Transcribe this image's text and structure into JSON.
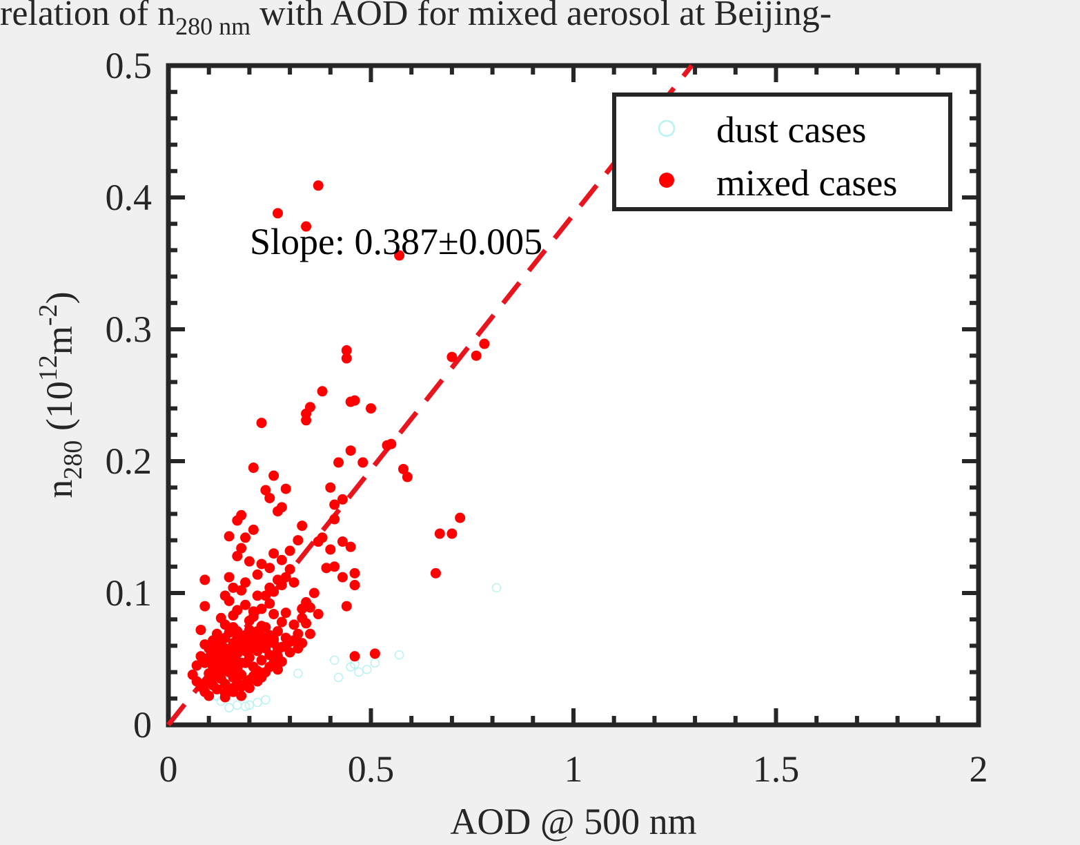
{
  "chart_data": {
    "type": "scatter",
    "title": {
      "before": "relation of n",
      "sub": "280 nm",
      "after": " with AOD for mixed aerosol at Beijing-"
    },
    "xlabel": "AOD @ 500 nm",
    "ylabel": {
      "main": "n",
      "sub": "280",
      "unit_open": " (10",
      "unit_sup1": "12",
      "unit_mid": "m",
      "unit_sup2": "-2",
      "unit_close": ")"
    },
    "xlim": [
      0,
      2
    ],
    "ylim": [
      0,
      0.5
    ],
    "x_ticks": [
      0,
      0.5,
      1,
      1.5,
      2
    ],
    "y_ticks": [
      0,
      0.1,
      0.2,
      0.3,
      0.4,
      0.5
    ],
    "x_tick_labels": [
      "0",
      "0.5",
      "1",
      "1.5",
      "2"
    ],
    "y_tick_labels": [
      "0",
      "0.1",
      "0.2",
      "0.3",
      "0.4",
      "0.5"
    ],
    "grid": false,
    "legend": {
      "position": "top-right",
      "entries": [
        {
          "label": "dust cases",
          "marker": "open-circle",
          "color": "#b8f2f2"
        },
        {
          "label": "mixed cases",
          "marker": "filled-circle",
          "color": "#ff0000"
        }
      ]
    },
    "annotation": "Slope: 0.387±0.005",
    "fit_line": {
      "slope": 0.387,
      "intercept": 0,
      "style": "dashed",
      "color": "#e8141e"
    },
    "series": [
      {
        "name": "dust cases",
        "marker": "open-circle",
        "color": "#b8f2f2",
        "points": [
          [
            0.81,
            0.104
          ],
          [
            0.57,
            0.053
          ],
          [
            0.41,
            0.049
          ],
          [
            0.46,
            0.046
          ],
          [
            0.51,
            0.047
          ],
          [
            0.49,
            0.042
          ],
          [
            0.47,
            0.04
          ],
          [
            0.42,
            0.036
          ],
          [
            0.32,
            0.039
          ],
          [
            0.45,
            0.044
          ],
          [
            0.22,
            0.017
          ],
          [
            0.2,
            0.015
          ],
          [
            0.17,
            0.015
          ],
          [
            0.19,
            0.014
          ],
          [
            0.15,
            0.013
          ],
          [
            0.24,
            0.019
          ],
          [
            0.12,
            0.022
          ],
          [
            0.13,
            0.018
          ]
        ]
      },
      {
        "name": "mixed cases",
        "marker": "filled-circle",
        "color": "#ff0000",
        "points": [
          [
            0.37,
            0.409
          ],
          [
            0.27,
            0.388
          ],
          [
            0.34,
            0.378
          ],
          [
            0.57,
            0.356
          ],
          [
            0.44,
            0.284
          ],
          [
            0.44,
            0.278
          ],
          [
            0.78,
            0.289
          ],
          [
            0.76,
            0.28
          ],
          [
            0.7,
            0.279
          ],
          [
            0.38,
            0.253
          ],
          [
            0.35,
            0.241
          ],
          [
            0.34,
            0.236
          ],
          [
            0.34,
            0.231
          ],
          [
            0.45,
            0.245
          ],
          [
            0.46,
            0.246
          ],
          [
            0.5,
            0.24
          ],
          [
            0.23,
            0.229
          ],
          [
            0.54,
            0.212
          ],
          [
            0.55,
            0.213
          ],
          [
            0.58,
            0.194
          ],
          [
            0.59,
            0.188
          ],
          [
            0.42,
            0.199
          ],
          [
            0.48,
            0.199
          ],
          [
            0.45,
            0.208
          ],
          [
            0.21,
            0.195
          ],
          [
            0.26,
            0.189
          ],
          [
            0.24,
            0.178
          ],
          [
            0.29,
            0.179
          ],
          [
            0.25,
            0.172
          ],
          [
            0.4,
            0.18
          ],
          [
            0.41,
            0.167
          ],
          [
            0.43,
            0.171
          ],
          [
            0.41,
            0.156
          ],
          [
            0.28,
            0.165
          ],
          [
            0.27,
            0.162
          ],
          [
            0.18,
            0.159
          ],
          [
            0.17,
            0.155
          ],
          [
            0.72,
            0.157
          ],
          [
            0.67,
            0.145
          ],
          [
            0.7,
            0.145
          ],
          [
            0.66,
            0.115
          ],
          [
            0.15,
            0.143
          ],
          [
            0.21,
            0.148
          ],
          [
            0.19,
            0.142
          ],
          [
            0.33,
            0.151
          ],
          [
            0.37,
            0.139
          ],
          [
            0.38,
            0.142
          ],
          [
            0.4,
            0.133
          ],
          [
            0.43,
            0.139
          ],
          [
            0.45,
            0.135
          ],
          [
            0.41,
            0.12
          ],
          [
            0.46,
            0.115
          ],
          [
            0.46,
            0.106
          ],
          [
            0.43,
            0.112
          ],
          [
            0.39,
            0.119
          ],
          [
            0.44,
            0.09
          ],
          [
            0.46,
            0.052
          ],
          [
            0.51,
            0.054
          ],
          [
            0.32,
            0.14
          ],
          [
            0.3,
            0.132
          ],
          [
            0.28,
            0.125
          ],
          [
            0.26,
            0.13
          ],
          [
            0.25,
            0.119
          ],
          [
            0.23,
            0.122
          ],
          [
            0.22,
            0.114
          ],
          [
            0.2,
            0.124
          ],
          [
            0.19,
            0.108
          ],
          [
            0.18,
            0.134
          ],
          [
            0.17,
            0.128
          ],
          [
            0.15,
            0.112
          ],
          [
            0.16,
            0.104
          ],
          [
            0.14,
            0.098
          ],
          [
            0.09,
            0.11
          ],
          [
            0.09,
            0.09
          ],
          [
            0.08,
            0.072
          ],
          [
            0.36,
            0.1
          ],
          [
            0.35,
            0.089
          ],
          [
            0.37,
            0.084
          ],
          [
            0.34,
            0.093
          ],
          [
            0.33,
            0.081
          ],
          [
            0.31,
            0.076
          ],
          [
            0.32,
            0.069
          ],
          [
            0.29,
            0.085
          ],
          [
            0.28,
            0.078
          ],
          [
            0.27,
            0.071
          ],
          [
            0.26,
            0.084
          ],
          [
            0.25,
            0.092
          ],
          [
            0.24,
            0.066
          ],
          [
            0.23,
            0.075
          ],
          [
            0.22,
            0.098
          ],
          [
            0.21,
            0.086
          ],
          [
            0.2,
            0.079
          ],
          [
            0.19,
            0.091
          ],
          [
            0.18,
            0.102
          ],
          [
            0.17,
            0.087
          ],
          [
            0.16,
            0.083
          ],
          [
            0.15,
            0.094
          ],
          [
            0.14,
            0.076
          ],
          [
            0.13,
            0.081
          ],
          [
            0.12,
            0.069
          ],
          [
            0.11,
            0.064
          ],
          [
            0.1,
            0.058
          ],
          [
            0.09,
            0.061
          ],
          [
            0.08,
            0.052
          ],
          [
            0.07,
            0.045
          ],
          [
            0.06,
            0.038
          ],
          [
            0.07,
            0.033
          ],
          [
            0.08,
            0.029
          ],
          [
            0.09,
            0.025
          ],
          [
            0.1,
            0.022
          ],
          [
            0.11,
            0.03
          ],
          [
            0.12,
            0.027
          ],
          [
            0.13,
            0.035
          ],
          [
            0.14,
            0.031
          ],
          [
            0.15,
            0.04
          ],
          [
            0.16,
            0.036
          ],
          [
            0.17,
            0.043
          ],
          [
            0.18,
            0.038
          ],
          [
            0.19,
            0.047
          ],
          [
            0.2,
            0.051
          ],
          [
            0.21,
            0.044
          ],
          [
            0.22,
            0.056
          ],
          [
            0.23,
            0.049
          ],
          [
            0.24,
            0.058
          ],
          [
            0.25,
            0.053
          ],
          [
            0.26,
            0.062
          ],
          [
            0.27,
            0.057
          ],
          [
            0.28,
            0.048
          ],
          [
            0.29,
            0.06
          ],
          [
            0.3,
            0.055
          ],
          [
            0.31,
            0.064
          ],
          [
            0.32,
            0.058
          ],
          [
            0.33,
            0.062
          ],
          [
            0.27,
            0.042
          ],
          [
            0.22,
            0.033
          ],
          [
            0.2,
            0.028
          ],
          [
            0.18,
            0.022
          ],
          [
            0.16,
            0.025
          ],
          [
            0.14,
            0.021
          ],
          [
            0.12,
            0.037
          ],
          [
            0.11,
            0.044
          ],
          [
            0.1,
            0.039
          ],
          [
            0.09,
            0.047
          ],
          [
            0.1,
            0.051
          ],
          [
            0.11,
            0.056
          ],
          [
            0.12,
            0.049
          ],
          [
            0.13,
            0.054
          ],
          [
            0.14,
            0.058
          ],
          [
            0.15,
            0.051
          ],
          [
            0.16,
            0.062
          ],
          [
            0.17,
            0.066
          ],
          [
            0.18,
            0.059
          ],
          [
            0.19,
            0.068
          ],
          [
            0.2,
            0.072
          ],
          [
            0.21,
            0.066
          ],
          [
            0.22,
            0.071
          ],
          [
            0.23,
            0.064
          ],
          [
            0.24,
            0.074
          ],
          [
            0.13,
            0.062
          ],
          [
            0.14,
            0.066
          ],
          [
            0.15,
            0.07
          ],
          [
            0.16,
            0.074
          ],
          [
            0.17,
            0.071
          ],
          [
            0.12,
            0.058
          ],
          [
            0.11,
            0.048
          ],
          [
            0.13,
            0.044
          ],
          [
            0.14,
            0.048
          ],
          [
            0.15,
            0.045
          ],
          [
            0.16,
            0.05
          ],
          [
            0.17,
            0.054
          ],
          [
            0.18,
            0.047
          ],
          [
            0.19,
            0.056
          ],
          [
            0.2,
            0.06
          ],
          [
            0.13,
            0.04
          ],
          [
            0.12,
            0.043
          ],
          [
            0.11,
            0.036
          ],
          [
            0.1,
            0.033
          ],
          [
            0.09,
            0.031
          ],
          [
            0.12,
            0.052
          ],
          [
            0.13,
            0.05
          ],
          [
            0.14,
            0.053
          ],
          [
            0.15,
            0.057
          ],
          [
            0.16,
            0.055
          ],
          [
            0.17,
            0.06
          ],
          [
            0.18,
            0.064
          ],
          [
            0.19,
            0.061
          ],
          [
            0.2,
            0.065
          ],
          [
            0.21,
            0.058
          ],
          [
            0.22,
            0.061
          ],
          [
            0.23,
            0.067
          ],
          [
            0.24,
            0.063
          ],
          [
            0.25,
            0.068
          ],
          [
            0.26,
            0.065
          ],
          [
            0.21,
            0.082
          ],
          [
            0.23,
            0.088
          ],
          [
            0.24,
            0.098
          ],
          [
            0.25,
            0.104
          ],
          [
            0.26,
            0.101
          ],
          [
            0.27,
            0.11
          ],
          [
            0.28,
            0.106
          ],
          [
            0.29,
            0.112
          ],
          [
            0.3,
            0.118
          ],
          [
            0.31,
            0.108
          ],
          [
            0.33,
            0.088
          ],
          [
            0.34,
            0.077
          ],
          [
            0.35,
            0.069
          ],
          [
            0.3,
            0.063
          ],
          [
            0.29,
            0.066
          ],
          [
            0.28,
            0.059
          ],
          [
            0.27,
            0.052
          ],
          [
            0.26,
            0.047
          ],
          [
            0.25,
            0.044
          ],
          [
            0.24,
            0.04
          ],
          [
            0.23,
            0.036
          ],
          [
            0.22,
            0.041
          ],
          [
            0.21,
            0.037
          ],
          [
            0.2,
            0.034
          ],
          [
            0.19,
            0.031
          ],
          [
            0.18,
            0.029
          ],
          [
            0.17,
            0.032
          ],
          [
            0.16,
            0.028
          ],
          [
            0.15,
            0.026
          ],
          [
            0.14,
            0.024
          ]
        ]
      }
    ]
  }
}
